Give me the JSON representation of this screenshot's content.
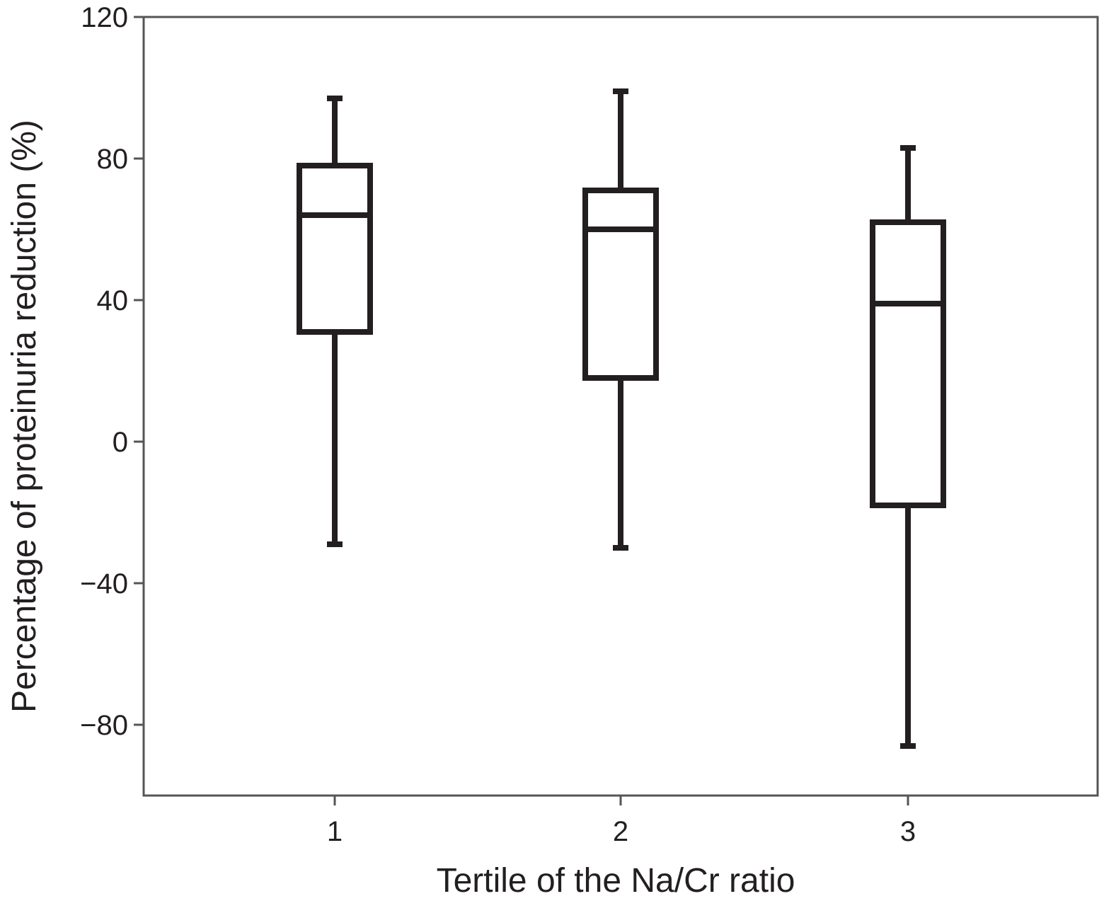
{
  "chart_data": {
    "type": "boxplot",
    "xlabel": "Tertile of the Na/Cr ratio",
    "ylabel": "Percentage of proteinuria reduction (%)",
    "ylim": [
      -100,
      120
    ],
    "yticks": [
      120,
      80,
      40,
      0,
      -40,
      -80
    ],
    "ytick_labels": [
      "120",
      "80",
      "40",
      "0",
      "−40",
      "−80"
    ],
    "categories": [
      "1",
      "2",
      "3"
    ],
    "boxes": [
      {
        "category": "1",
        "whisker_low": -29,
        "q1": 31,
        "median": 64,
        "q3": 78,
        "whisker_high": 97
      },
      {
        "category": "2",
        "whisker_low": -30,
        "q1": 18,
        "median": 60,
        "q3": 71,
        "whisker_high": 99
      },
      {
        "category": "3",
        "whisker_low": -86,
        "q1": -18,
        "median": 39,
        "q3": 62,
        "whisker_high": 83
      }
    ],
    "grid": false,
    "colors": {
      "stroke": "#231f20",
      "axis": "#555555",
      "fill": "#ffffff"
    }
  }
}
